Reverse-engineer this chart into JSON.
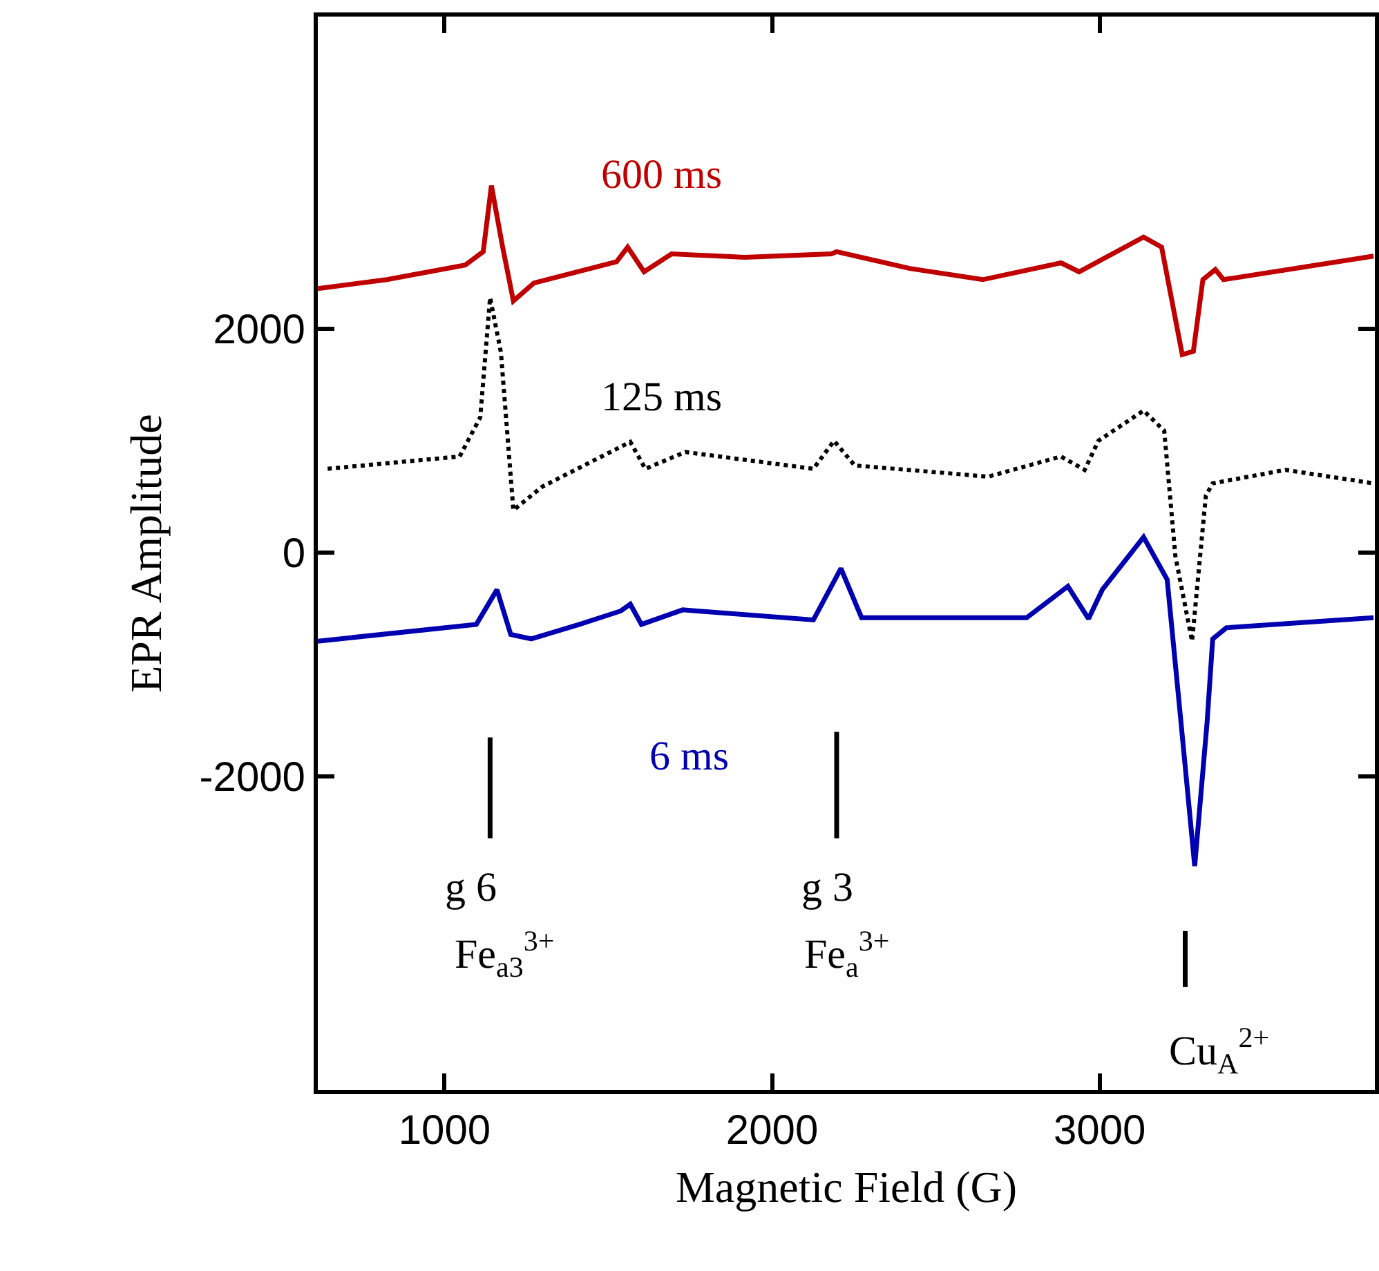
{
  "chart_data": {
    "type": "line",
    "xlabel": "Magnetic Field (G)",
    "ylabel": "EPR Amplitude",
    "xlim": [
      613,
      3840
    ],
    "xticks": [
      1000,
      2000,
      3000
    ],
    "ylim": [
      -4800,
      4790
    ],
    "yticks": [
      -2000,
      0,
      2000
    ],
    "grid": false,
    "legend": false,
    "series": [
      {
        "name": "600 ms",
        "color": "#c00000",
        "line_style": "solid",
        "x": [
          613,
          824,
          1063,
          1118,
          1143,
          1176,
          1210,
          1273,
          1525,
          1559,
          1609,
          1693,
          1916,
          2181,
          2197,
          2420,
          2643,
          2882,
          2937,
          3134,
          3189,
          3252,
          3286,
          3315,
          3353,
          3378,
          3836
        ],
        "values": [
          2360,
          2440,
          2570,
          2690,
          3280,
          2750,
          2250,
          2410,
          2600,
          2730,
          2510,
          2670,
          2640,
          2670,
          2690,
          2540,
          2440,
          2590,
          2510,
          2820,
          2730,
          1770,
          1800,
          2440,
          2530,
          2440,
          2650
        ]
      },
      {
        "name": "125 ms",
        "color": "#000000",
        "line_style": "dotted",
        "x": [
          643,
          1046,
          1109,
          1139,
          1172,
          1210,
          1298,
          1567,
          1613,
          1735,
          2126,
          2189,
          2252,
          2660,
          2882,
          2954,
          2996,
          3134,
          3197,
          3231,
          3282,
          3324,
          3345,
          3567,
          3836
        ],
        "values": [
          750,
          860,
          1210,
          2280,
          1790,
          380,
          590,
          990,
          750,
          900,
          750,
          1000,
          780,
          680,
          860,
          740,
          1000,
          1270,
          1090,
          -30,
          -790,
          510,
          620,
          740,
          620
        ]
      },
      {
        "name": "6 ms",
        "color": "#0000b0",
        "line_style": "solid",
        "x": [
          613,
          1097,
          1160,
          1202,
          1265,
          1412,
          1538,
          1567,
          1601,
          1727,
          2126,
          2210,
          2273,
          2777,
          2903,
          2966,
          3008,
          3134,
          3206,
          3248,
          3290,
          3328,
          3345,
          3387,
          3836
        ],
        "values": [
          -790,
          -640,
          -330,
          -730,
          -770,
          -640,
          -520,
          -460,
          -640,
          -510,
          -600,
          -140,
          -580,
          -580,
          -300,
          -590,
          -330,
          140,
          -240,
          -1510,
          -2800,
          -1510,
          -770,
          -670,
          -580
        ]
      },
      {
        "color": "#000000",
        "line_style": "solid",
        "x": [
          1139,
          1139
        ],
        "values": [
          -1650,
          -2550
        ]
      },
      {
        "color": "#000000",
        "line_style": "solid",
        "x": [
          2197,
          2197
        ],
        "values": [
          -1600,
          -2550
        ]
      },
      {
        "color": "#000000",
        "line_style": "solid",
        "x": [
          3261,
          3261
        ],
        "values": [
          -3380,
          -3880
        ]
      }
    ],
    "annotations": [
      "g 6",
      "Fe$_{a3}$$^{3+}$",
      "g 3",
      "Fe$_{a}$$^{3+}$",
      "Cu$_{A}$$^{2+}$"
    ]
  }
}
